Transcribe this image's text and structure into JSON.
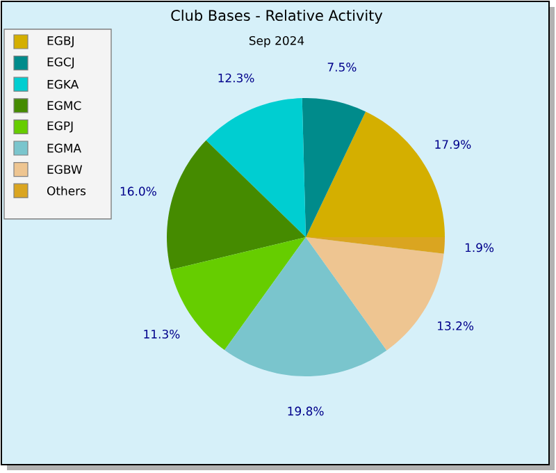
{
  "chart_data": {
    "type": "pie",
    "title": "Club Bases - Relative Activity",
    "subtitle": "Sep 2024",
    "categories": [
      "EGBJ",
      "EGCJ",
      "EGKA",
      "EGMC",
      "EGPJ",
      "EGMA",
      "EGBW",
      "Others"
    ],
    "values": [
      17.9,
      7.5,
      12.3,
      16.0,
      11.3,
      19.8,
      13.2,
      1.9
    ],
    "value_labels": [
      "17.9%",
      "7.5%",
      "12.3%",
      "16.0%",
      "11.3%",
      "19.8%",
      "13.2%",
      "1.9%"
    ],
    "colors": [
      "#d4af00",
      "#008b8b",
      "#00ced1",
      "#458b00",
      "#66cd00",
      "#7ac5cd",
      "#eec591",
      "#daa520"
    ],
    "legend": "top left"
  }
}
